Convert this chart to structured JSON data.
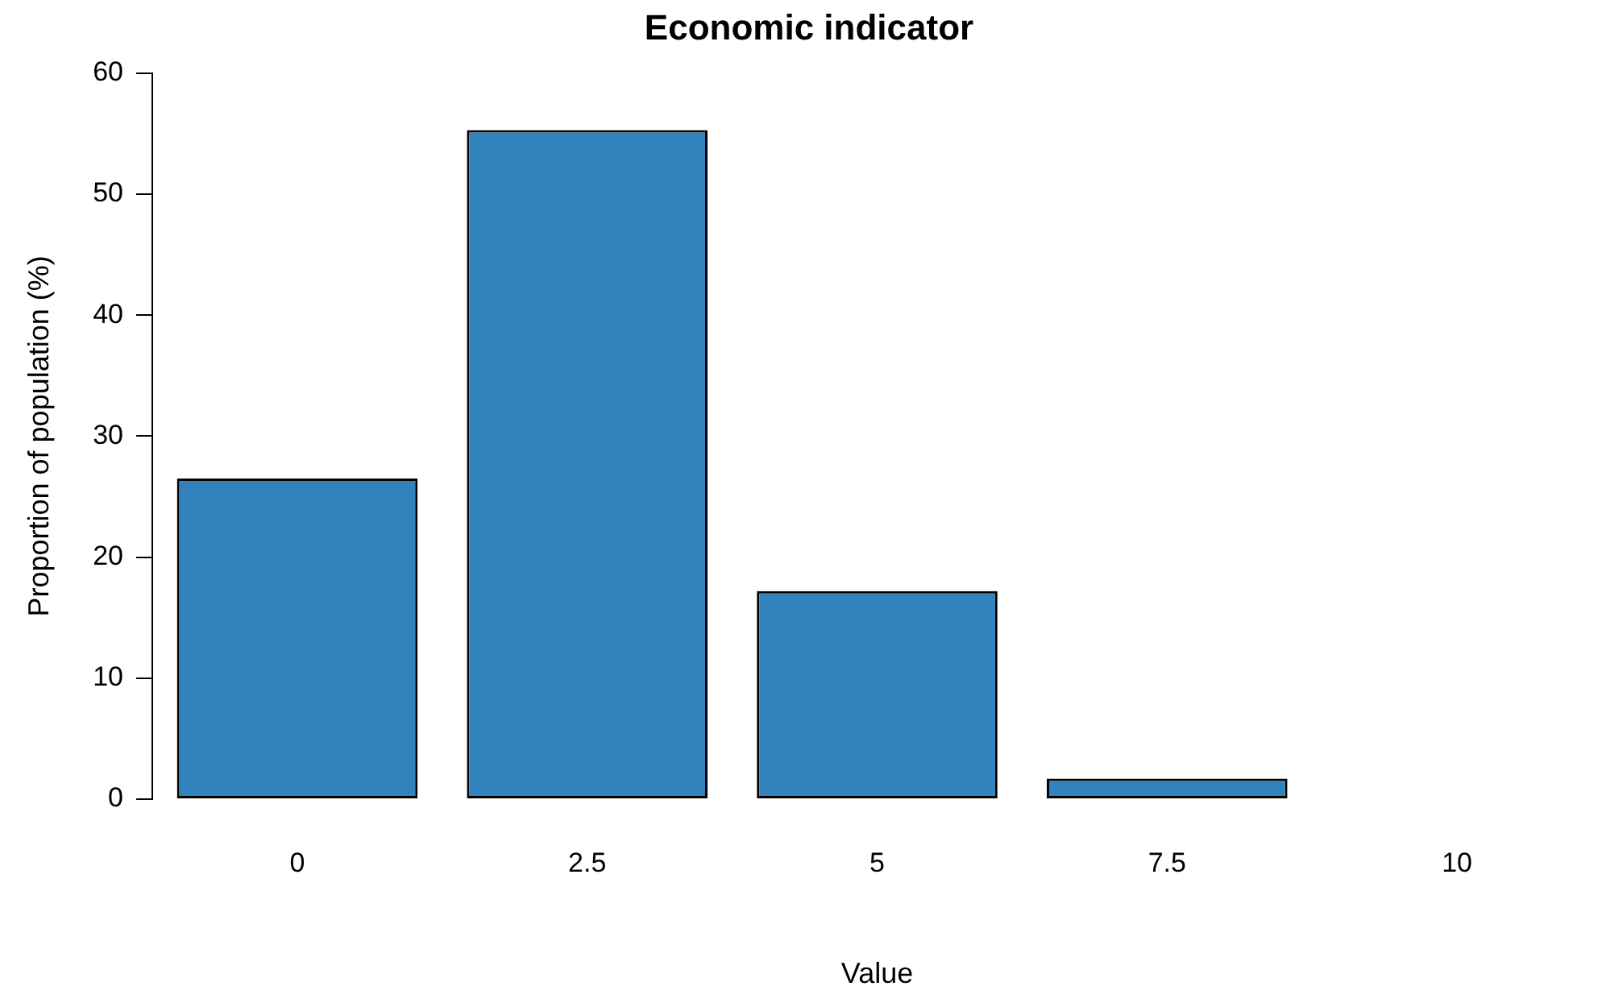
{
  "chart_data": {
    "type": "bar",
    "title": "Economic indicator",
    "xlabel": "Value",
    "ylabel": "Proportion of population (%)",
    "categories": [
      "0",
      "2.5",
      "5",
      "7.5",
      "10"
    ],
    "values": [
      26.5,
      55.3,
      17.2,
      1.7,
      0
    ],
    "color": "#3182bd",
    "ylim": [
      0,
      60
    ],
    "yticks": [
      0,
      10,
      20,
      30,
      40,
      50,
      60
    ],
    "grid": false,
    "legend": false
  }
}
